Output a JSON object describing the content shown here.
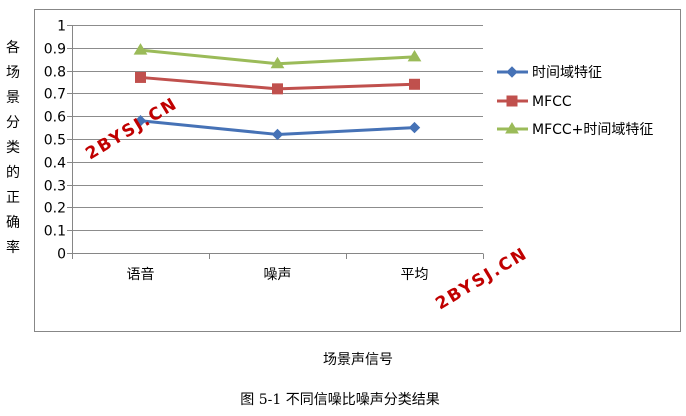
{
  "colors": {
    "series_0": "#4672b6",
    "series_1": "#c0504d",
    "series_2": "#9bbb59",
    "watermark": "#c00000"
  },
  "chart_data": {
    "type": "line",
    "title": "",
    "xlabel": "场景声信号",
    "ylabel": "各场景分类的正确率",
    "categories": [
      "语音",
      "噪声",
      "平均"
    ],
    "ylim": [
      0,
      1
    ],
    "yticks": [
      "0",
      "0.1",
      "0.2",
      "0.3",
      "0.4",
      "0.5",
      "0.6",
      "0.7",
      "0.8",
      "0.9",
      "1"
    ],
    "grid": true,
    "legend": "right",
    "series": [
      {
        "name": "时间域特征",
        "marker": "diamond",
        "values": [
          0.58,
          0.52,
          0.55
        ]
      },
      {
        "name": "MFCC",
        "marker": "square",
        "values": [
          0.77,
          0.72,
          0.74
        ]
      },
      {
        "name": "MFCC+时间域特征",
        "marker": "triangle",
        "values": [
          0.89,
          0.83,
          0.86
        ]
      }
    ]
  },
  "caption": "图 5-1  不同信噪比噪声分类结果",
  "watermarks": [
    "2BYSJ.CN",
    "2BYSJ.CN"
  ]
}
